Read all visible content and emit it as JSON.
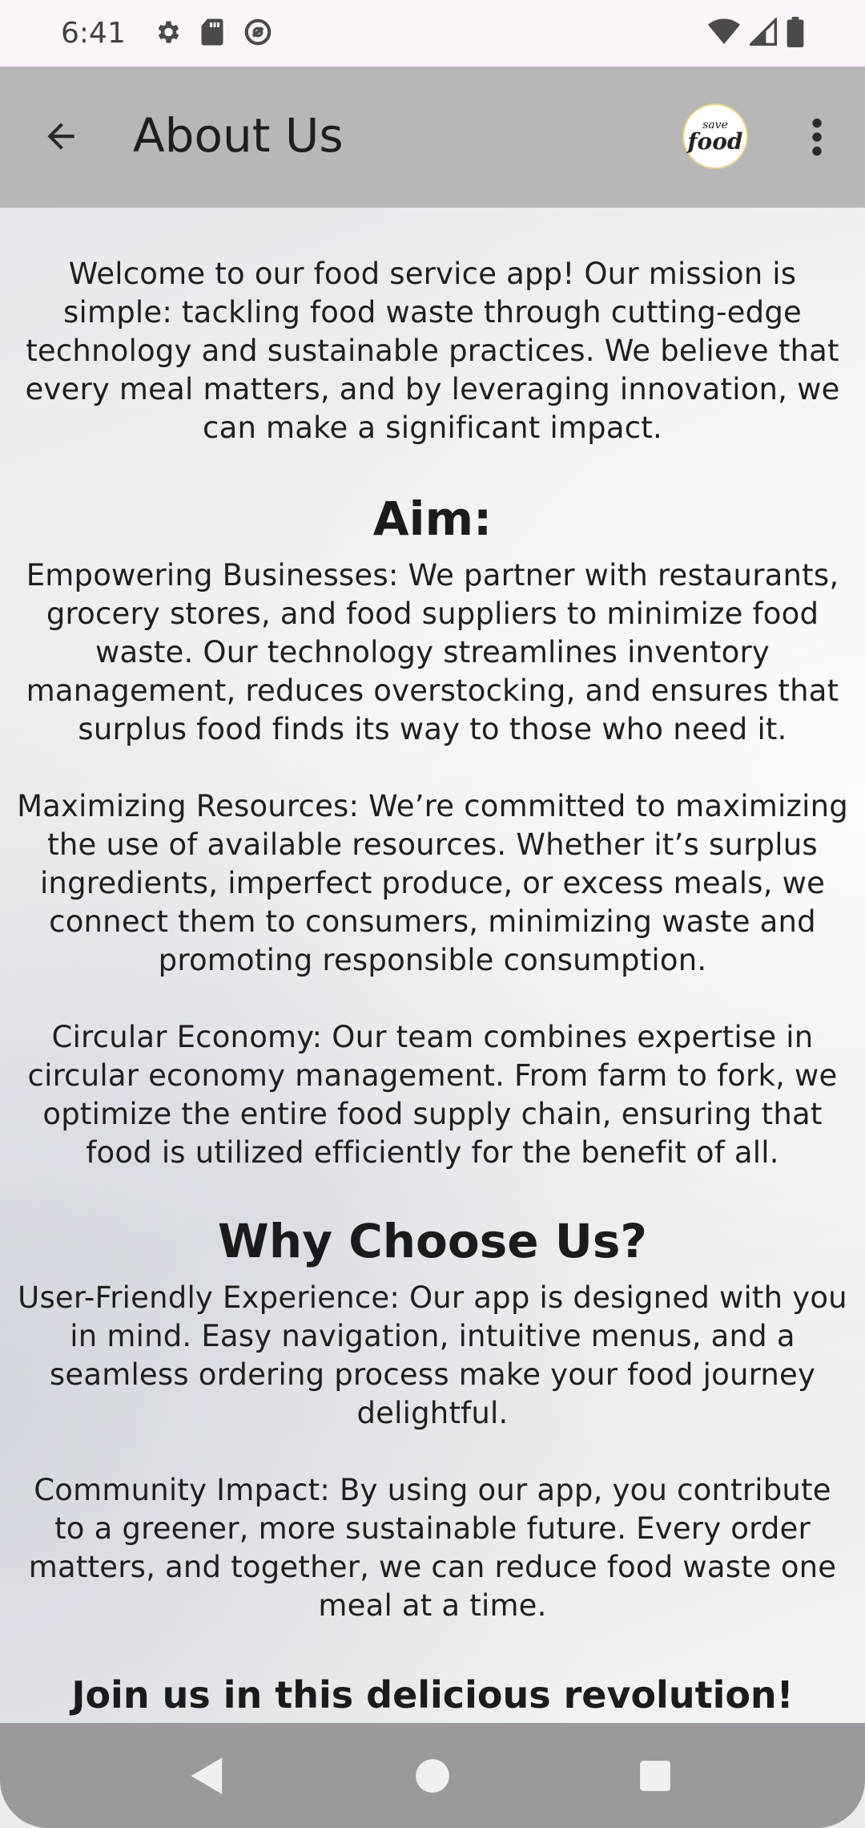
{
  "status_bar": {
    "time": "6:41",
    "left_icons": [
      "gear-icon",
      "sd-card-icon",
      "do-not-disturb-icon"
    ],
    "right_icons": [
      "wifi-icon",
      "signal-icon",
      "battery-icon"
    ]
  },
  "app_bar": {
    "title": "About Us",
    "logo": {
      "line1": "save",
      "line2": "food"
    },
    "back_icon": "arrow-left-icon",
    "menu_icon": "more-vert-icon"
  },
  "content": {
    "intro": "Welcome to our food service app! Our mission is simple: tackling food waste through cutting-edge technology and sustainable practices. We believe that every meal matters, and by leveraging innovation, we can make a significant impact.",
    "aim_heading": "Aim:",
    "aim_paragraphs": [
      "Empowering Businesses: We partner with restaurants, grocery stores, and food suppliers to minimize food waste. Our technology streamlines inventory management, reduces overstocking, and ensures that surplus food finds its way to those who need it.",
      "Maximizing Resources: We’re committed to maximizing the use of available resources. Whether it’s surplus ingredients, imperfect produce, or excess meals, we connect them to consumers, minimizing waste and promoting responsible consumption.",
      "Circular Economy: Our team combines expertise in circular economy management. From farm to fork, we optimize the entire food supply chain, ensuring that food is utilized efficiently for the benefit of all."
    ],
    "why_heading": "Why Choose Us?",
    "why_paragraphs": [
      "User-Friendly Experience: Our app is designed with you in mind. Easy navigation, intuitive menus, and a seamless ordering process make your food journey delightful.",
      "Community Impact: By using our app, you contribute to a greener, more sustainable future. Every order matters, and together, we can reduce food waste one meal at a time."
    ],
    "closing": "Join us in this delicious revolution!"
  },
  "nav_bar": {
    "buttons": [
      "back-triangle-icon",
      "home-circle-icon",
      "recents-square-icon"
    ]
  },
  "colors": {
    "status_bar_bg": "#fbf4fb",
    "app_bar_bg": "#b7b7b7",
    "nav_bar_bg": "#9c999e",
    "text": "#1f1f1f"
  }
}
